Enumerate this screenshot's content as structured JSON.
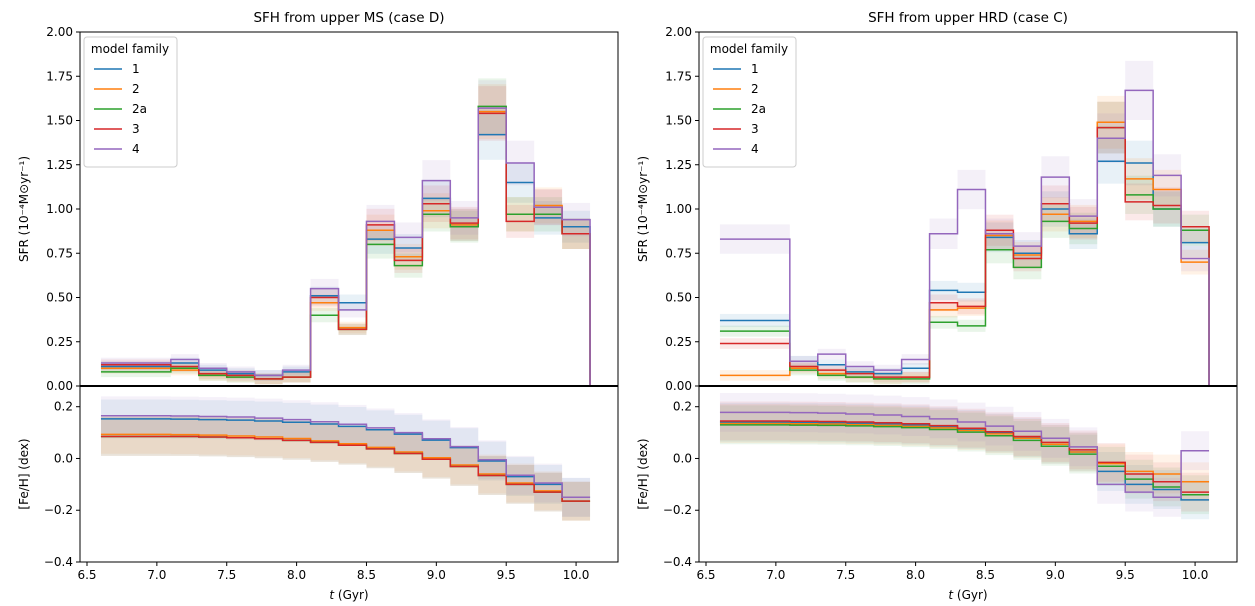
{
  "chart_data": [
    {
      "type": "line",
      "title": "SFH from upper MS (case D)",
      "xlabel": "t (Gyr)",
      "ylabel_top": "SFR (10⁻⁴M⊙yr⁻¹)",
      "ylabel_bottom": "[Fe/H] (dex)",
      "xlim": [
        6.45,
        10.3
      ],
      "ylim_top": [
        0,
        2.0
      ],
      "ylim_bottom": [
        -0.4,
        0.28
      ],
      "xticks": [
        "6.5",
        "7.0",
        "7.5",
        "8.0",
        "8.5",
        "9.0",
        "9.5",
        "10.0"
      ],
      "yticks_top": [
        "0.00",
        "0.25",
        "0.50",
        "0.75",
        "1.00",
        "1.25",
        "1.50",
        "1.75",
        "2.00"
      ],
      "yticks_bottom": [
        "−0.4",
        "−0.2",
        "0.0",
        "0.2"
      ],
      "legend": {
        "title": "model family",
        "placement": "upper-left"
      },
      "bin_edges": [
        6.6,
        7.1,
        7.3,
        7.5,
        7.7,
        7.9,
        8.1,
        8.3,
        8.5,
        8.7,
        8.9,
        9.1,
        9.3,
        9.5,
        9.7,
        9.9,
        10.1
      ],
      "series": [
        {
          "name": "1",
          "color": "#1f77b4",
          "sfr": [
            0.11,
            0.13,
            0.09,
            0.07,
            0.06,
            0.08,
            0.51,
            0.47,
            0.83,
            0.78,
            1.06,
            0.91,
            1.42,
            1.15,
            0.95,
            0.9
          ],
          "feh": [
            0.153,
            0.152,
            0.15,
            0.148,
            0.145,
            0.14,
            0.133,
            0.124,
            0.111,
            0.094,
            0.071,
            0.042,
            -0.01,
            -0.07,
            -0.1,
            -0.15
          ]
        },
        {
          "name": "2",
          "color": "#ff7f0e",
          "sfr": [
            0.1,
            0.09,
            0.06,
            0.05,
            0.04,
            0.05,
            0.47,
            0.33,
            0.88,
            0.73,
            0.99,
            0.91,
            1.55,
            0.97,
            1.02,
            0.86
          ],
          "feh": [
            0.093,
            0.092,
            0.09,
            0.087,
            0.083,
            0.077,
            0.068,
            0.057,
            0.043,
            0.025,
            0.003,
            -0.025,
            -0.06,
            -0.095,
            -0.125,
            -0.165
          ]
        },
        {
          "name": "2a",
          "color": "#2ca02c",
          "sfr": [
            0.08,
            0.1,
            0.06,
            0.05,
            0.04,
            0.05,
            0.4,
            0.32,
            0.8,
            0.68,
            0.97,
            0.9,
            1.58,
            0.97,
            0.97,
            0.86
          ],
          "feh": [
            0.085,
            0.085,
            0.083,
            0.08,
            0.076,
            0.07,
            0.062,
            0.051,
            0.037,
            0.019,
            -0.003,
            -0.031,
            -0.066,
            -0.1,
            -0.13,
            -0.165
          ]
        },
        {
          "name": "3",
          "color": "#d62728",
          "sfr": [
            0.12,
            0.11,
            0.07,
            0.06,
            0.04,
            0.05,
            0.5,
            0.32,
            0.91,
            0.71,
            1.03,
            0.92,
            1.54,
            0.93,
            1.01,
            0.86
          ],
          "feh": [
            0.085,
            0.085,
            0.083,
            0.08,
            0.076,
            0.07,
            0.062,
            0.051,
            0.037,
            0.019,
            -0.003,
            -0.031,
            -0.066,
            -0.1,
            -0.13,
            -0.165
          ]
        },
        {
          "name": "4",
          "color": "#9467bd",
          "sfr": [
            0.13,
            0.15,
            0.1,
            0.08,
            0.06,
            0.09,
            0.55,
            0.43,
            0.93,
            0.84,
            1.16,
            0.95,
            1.57,
            1.26,
            1.01,
            0.94
          ],
          "feh": [
            0.165,
            0.164,
            0.162,
            0.16,
            0.156,
            0.15,
            0.142,
            0.132,
            0.118,
            0.1,
            0.076,
            0.046,
            -0.005,
            -0.065,
            -0.095,
            -0.15
          ]
        }
      ]
    },
    {
      "type": "line",
      "title": "SFH from upper HRD (case C)",
      "xlabel": "t (Gyr)",
      "ylabel_top": "SFR (10⁻⁴M⊙yr⁻¹)",
      "ylabel_bottom": "[Fe/H] (dex)",
      "xlim": [
        6.45,
        10.3
      ],
      "ylim_top": [
        0,
        2.0
      ],
      "ylim_bottom": [
        -0.4,
        0.28
      ],
      "xticks": [
        "6.5",
        "7.0",
        "7.5",
        "8.0",
        "8.5",
        "9.0",
        "9.5",
        "10.0"
      ],
      "yticks_top": [
        "0.00",
        "0.25",
        "0.50",
        "0.75",
        "1.00",
        "1.25",
        "1.50",
        "1.75",
        "2.00"
      ],
      "yticks_bottom": [
        "−0.4",
        "−0.2",
        "0.0",
        "0.2"
      ],
      "legend": {
        "title": "model family",
        "placement": "upper-left"
      },
      "bin_edges": [
        6.6,
        7.1,
        7.3,
        7.5,
        7.7,
        7.9,
        8.1,
        8.3,
        8.5,
        8.7,
        8.9,
        9.1,
        9.3,
        9.5,
        9.7,
        9.9,
        10.1
      ],
      "series": [
        {
          "name": "1",
          "color": "#1f77b4",
          "sfr": [
            0.37,
            0.14,
            0.12,
            0.08,
            0.07,
            0.1,
            0.54,
            0.53,
            0.84,
            0.75,
            1.0,
            0.86,
            1.27,
            1.26,
            1.0,
            0.81
          ],
          "feh": [
            0.14,
            0.139,
            0.138,
            0.136,
            0.133,
            0.129,
            0.122,
            0.112,
            0.098,
            0.08,
            0.055,
            0.025,
            -0.05,
            -0.1,
            -0.12,
            -0.16
          ]
        },
        {
          "name": "2",
          "color": "#ff7f0e",
          "sfr": [
            0.06,
            0.1,
            0.07,
            0.05,
            0.04,
            0.05,
            0.43,
            0.44,
            0.85,
            0.74,
            0.97,
            0.93,
            1.49,
            1.17,
            1.11,
            0.7
          ],
          "feh": [
            0.135,
            0.134,
            0.133,
            0.131,
            0.128,
            0.124,
            0.118,
            0.108,
            0.095,
            0.078,
            0.055,
            0.025,
            -0.02,
            -0.05,
            -0.06,
            -0.09
          ]
        },
        {
          "name": "2a",
          "color": "#2ca02c",
          "sfr": [
            0.31,
            0.09,
            0.06,
            0.05,
            0.04,
            0.04,
            0.36,
            0.34,
            0.77,
            0.67,
            0.93,
            0.89,
            1.46,
            1.08,
            1.0,
            0.88
          ],
          "feh": [
            0.13,
            0.129,
            0.128,
            0.126,
            0.123,
            0.119,
            0.112,
            0.102,
            0.088,
            0.07,
            0.047,
            0.017,
            -0.03,
            -0.08,
            -0.11,
            -0.14
          ]
        },
        {
          "name": "3",
          "color": "#d62728",
          "sfr": [
            0.24,
            0.11,
            0.09,
            0.07,
            0.05,
            0.05,
            0.47,
            0.45,
            0.88,
            0.72,
            1.03,
            0.92,
            1.46,
            1.04,
            1.02,
            0.9
          ],
          "feh": [
            0.145,
            0.144,
            0.143,
            0.141,
            0.138,
            0.134,
            0.127,
            0.117,
            0.103,
            0.085,
            0.062,
            0.033,
            -0.015,
            -0.06,
            -0.09,
            -0.13
          ]
        },
        {
          "name": "4",
          "color": "#9467bd",
          "sfr": [
            0.83,
            0.14,
            0.18,
            0.11,
            0.09,
            0.15,
            0.86,
            1.11,
            0.86,
            0.79,
            1.18,
            0.96,
            1.4,
            1.67,
            1.19,
            0.72
          ],
          "feh": [
            0.178,
            0.177,
            0.175,
            0.172,
            0.168,
            0.162,
            0.153,
            0.141,
            0.125,
            0.105,
            0.078,
            0.045,
            -0.1,
            -0.13,
            -0.15,
            0.03
          ]
        }
      ]
    }
  ]
}
